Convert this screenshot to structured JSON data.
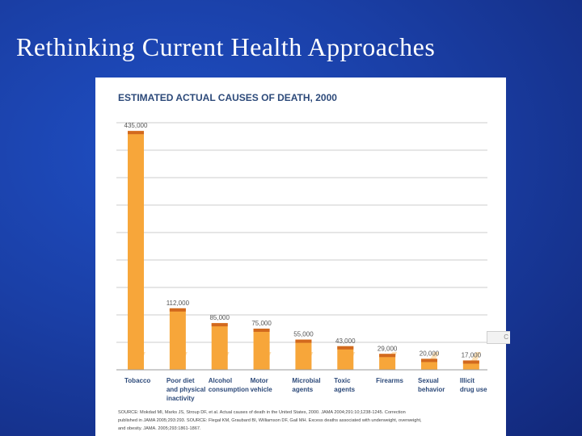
{
  "slide": {
    "title": "Rethinking Current Health Approaches"
  },
  "chart_data": {
    "type": "bar",
    "title": "ESTIMATED ACTUAL CAUSES OF DEATH, 2000",
    "categories": [
      [
        "Tobacco"
      ],
      [
        "Poor diet",
        "and physical",
        "inactivity"
      ],
      [
        "Alcohol",
        "consumption"
      ],
      [
        "Motor",
        "vehicle"
      ],
      [
        "Microbial",
        "agents"
      ],
      [
        "Toxic",
        "agents"
      ],
      [
        "Firearms"
      ],
      [
        "Sexual",
        "behavior"
      ],
      [
        "Illicit",
        "drug use"
      ]
    ],
    "values": [
      435000,
      112000,
      85000,
      75000,
      55000,
      43000,
      29000,
      20000,
      17000
    ],
    "value_labels": [
      "435,000",
      "112,000",
      "85,000",
      "75,000",
      "55,000",
      "43,000",
      "29,000",
      "20,000",
      "17,000"
    ],
    "ylim": [
      0,
      450000
    ],
    "gridlines": 9,
    "xlabel": "",
    "ylabel": "",
    "source_lines": [
      "SOURCE: Mokdad MI, Marks JS, Stroup DF, et al. Actual causes of death in the United States, 2000. JAMA 2004;291:10;1238-1245. Correction",
      "published in JAMA 2005;293:293. SOURCE: Flegal KM, Graubard BI, Williamson DF, Gail MH. Excess deaths associated with underweight, overweight,",
      "and obesity. JAMA. 2005;293:1861-1867."
    ]
  },
  "colors": {
    "bar_fill": "#f7a63a",
    "bar_cap": "#d2691e",
    "title_text": "#2d4a7a",
    "grid": "#cccccc"
  }
}
